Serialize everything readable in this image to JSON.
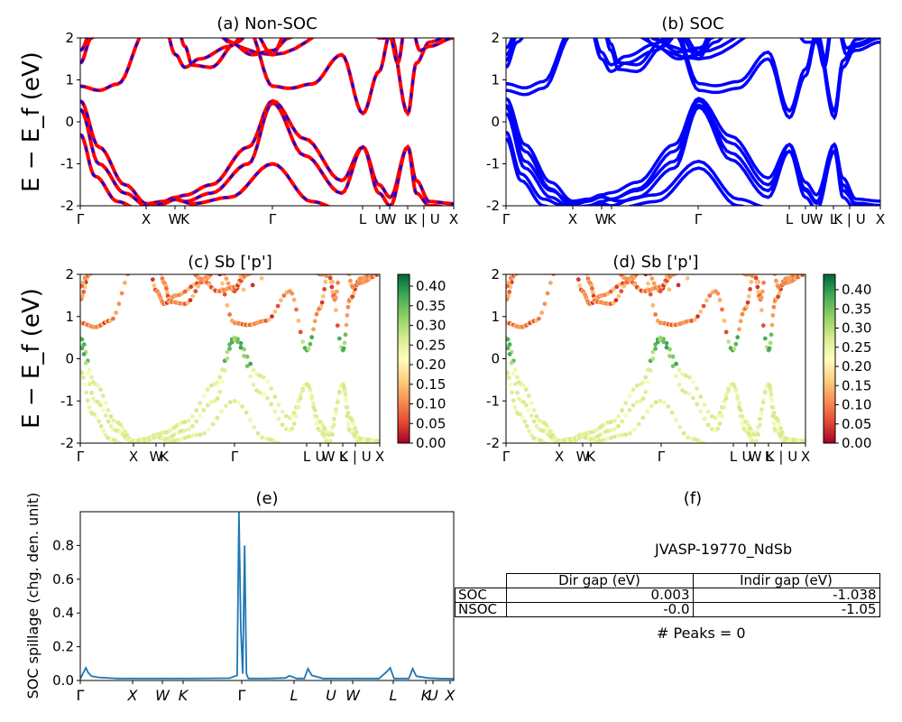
{
  "ylabel_energy": "E − E_f (eV)",
  "kpath_labels": [
    "Γ",
    "X",
    "W",
    "K",
    "Γ",
    "L",
    "U",
    "W",
    "L",
    "K | U",
    "X"
  ],
  "band_colors": {
    "nonsoc_a": "#ff0000",
    "nonsoc_b": "#0000ff",
    "soc": "#0000ff",
    "spillage": "#1f77b4"
  },
  "colorbar_ticks": [
    "0.00",
    "0.05",
    "0.10",
    "0.15",
    "0.20",
    "0.25",
    "0.30",
    "0.35",
    "0.40"
  ],
  "panels": {
    "a": {
      "title": "(a) Non-SOC"
    },
    "b": {
      "title": "(b) SOC"
    },
    "c": {
      "title": "(c)  Sb ['p']"
    },
    "d": {
      "title": "(d) Sb ['p']"
    },
    "e": {
      "title": "(e)",
      "ylabel": "SOC spillage (chg. den. unit)"
    },
    "f": {
      "title": "(f)"
    }
  },
  "chart_data": [
    {
      "type": "line",
      "panel": "a",
      "title": "(a) Non-SOC",
      "ylabel": "E − E_f (eV)",
      "ylim": [
        -2,
        2
      ],
      "yticks": [
        -2,
        -1,
        0,
        1,
        2
      ]
    },
    {
      "type": "line",
      "panel": "b",
      "title": "(b) SOC",
      "ylim": [
        -2,
        2
      ],
      "yticks": [
        -2,
        -1,
        0,
        1,
        2
      ]
    },
    {
      "type": "scatter",
      "panel": "c",
      "title": "(c)  Sb ['p']",
      "ylabel": "E − E_f (eV)",
      "ylim": [
        -2,
        2
      ],
      "colorbar_range": [
        0.0,
        0.43
      ],
      "colormap": "RdYlGn"
    },
    {
      "type": "scatter",
      "panel": "d",
      "title": "(d) Sb ['p']",
      "ylim": [
        -2,
        2
      ],
      "colorbar_range": [
        0.0,
        0.44
      ],
      "colormap": "RdYlGn"
    },
    {
      "type": "line",
      "panel": "e",
      "title": "(e)",
      "ylabel": "SOC spillage (chg. den. unit)",
      "xlabels": [
        "Γ",
        "X",
        "W",
        "K",
        "Γ",
        "L",
        "U",
        "W",
        "L",
        "K",
        "U",
        "X"
      ],
      "ylim": [
        0.0,
        1.0
      ],
      "yticks": [
        0.0,
        0.2,
        0.4,
        0.6,
        0.8
      ],
      "x": [
        0,
        0.015,
        0.02,
        0.03,
        0.05,
        0.1,
        0.2,
        0.3,
        0.35,
        0.4,
        0.42,
        0.425,
        0.43,
        0.435,
        0.44,
        0.445,
        0.45,
        0.455,
        0.46,
        0.47,
        0.5,
        0.55,
        0.56,
        0.58,
        0.6,
        0.61,
        0.62,
        0.65,
        0.7,
        0.8,
        0.82,
        0.83,
        0.84,
        0.88,
        0.89,
        0.9,
        0.93,
        0.96,
        1.0
      ],
      "y": [
        0.01,
        0.075,
        0.05,
        0.025,
        0.018,
        0.012,
        0.012,
        0.012,
        0.013,
        0.014,
        0.03,
        0.998,
        0.3,
        0.04,
        0.8,
        0.04,
        0.012,
        0.012,
        0.012,
        0.012,
        0.012,
        0.015,
        0.028,
        0.012,
        0.012,
        0.07,
        0.03,
        0.012,
        0.012,
        0.012,
        0.05,
        0.075,
        0.012,
        0.012,
        0.07,
        0.025,
        0.015,
        0.012,
        0.01
      ]
    }
  ],
  "summary": {
    "id": "JVASP-19770_NdSb",
    "headers": [
      "Dir gap (eV)",
      "Indir gap (eV)"
    ],
    "rows": [
      {
        "label": "SOC",
        "dir": "0.003",
        "indir": "-1.038"
      },
      {
        "label": "NSOC",
        "dir": "-0.0",
        "indir": "-1.05"
      }
    ],
    "peaks": "# Peaks = 0"
  }
}
